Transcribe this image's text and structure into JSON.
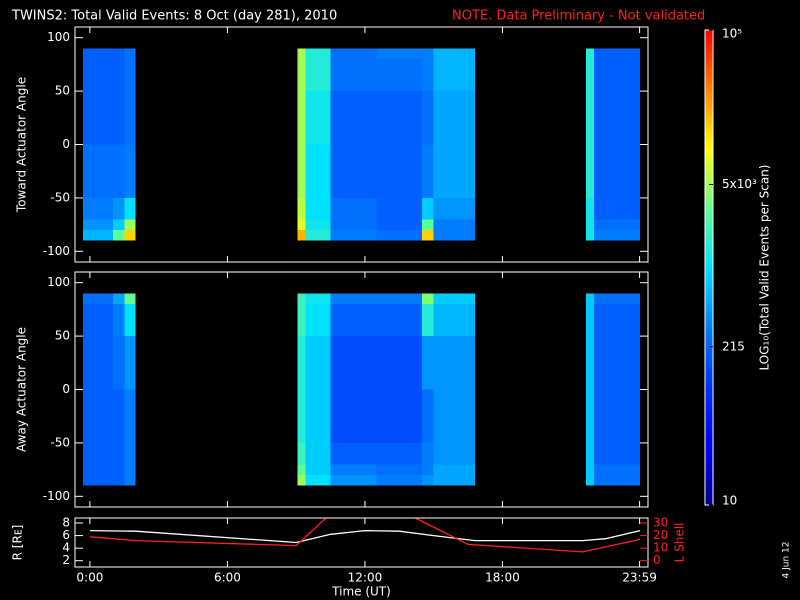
{
  "chart_data": [
    {
      "type": "heatmap",
      "title": "TWINS2: Total Valid Events:  8 Oct (day 281), 2010",
      "note": "NOTE. Data Preliminary - Not validated",
      "note_color": "#ff2020",
      "ylabel": "Toward Actuator Angle",
      "xlim": [
        -0.65,
        24.35
      ],
      "xticks": [
        0,
        6,
        12,
        18,
        23.983
      ],
      "ylim": [
        -110,
        110
      ],
      "yticks": [
        -100,
        -50,
        0,
        50,
        100
      ],
      "x_edges": [
        -0.3,
        1.0,
        1.5,
        2.0,
        9.05,
        9.4,
        10.5,
        12.5,
        14.5,
        15.0,
        16.8,
        21.65,
        22.0,
        24.0
      ],
      "y_edges": [
        -90,
        -80,
        -70,
        -50,
        0,
        50,
        80,
        90
      ],
      "z": [
        [
          600,
          400,
          300,
          250,
          200,
          200,
          200
        ],
        [
          3000,
          800,
          400,
          250,
          200,
          200,
          200
        ],
        [
          15000,
          5000,
          1000,
          300,
          250,
          250,
          250
        ],
        null,
        [
          20000,
          8000,
          6000,
          5000,
          5000,
          5000,
          5000
        ],
        [
          1500,
          1200,
          1000,
          1000,
          1200,
          1500,
          1500
        ],
        [
          300,
          250,
          250,
          200,
          200,
          250,
          250
        ],
        [
          250,
          200,
          200,
          200,
          200,
          250,
          300
        ],
        [
          15000,
          3000,
          800,
          300,
          250,
          300,
          300
        ],
        [
          300,
          300,
          400,
          500,
          500,
          600,
          600
        ],
        null,
        [
          1200,
          1200,
          1200,
          1500,
          1500,
          1500,
          1500
        ],
        [
          300,
          250,
          200,
          200,
          200,
          200,
          200
        ]
      ],
      "colorbar": {
        "label": "LOG₁₀(Total Valid Events per Scan)",
        "log": true,
        "lim": [
          10,
          100000
        ],
        "ticks": [
          10,
          215,
          {
            "value": 5000,
            "label": "5x10³"
          },
          {
            "value": 100000,
            "label": "10⁵"
          }
        ],
        "colormap": [
          "#000090",
          "#0000ff",
          "#0030ff",
          "#0080ff",
          "#00e0ff",
          "#60ff90",
          "#ffff00",
          "#ff8000",
          "#ff0000"
        ]
      }
    },
    {
      "type": "heatmap",
      "ylabel": "Away Actuator Angle",
      "xlim": [
        -0.65,
        24.35
      ],
      "xticks": [
        0,
        6,
        12,
        18,
        23.983
      ],
      "ylim": [
        -110,
        110
      ],
      "yticks": [
        -100,
        -50,
        0,
        50,
        100
      ],
      "x_edges": [
        -0.3,
        1.0,
        1.5,
        2.0,
        9.05,
        9.4,
        10.5,
        12.5,
        14.5,
        15.0,
        16.8,
        21.65,
        22.0,
        24.0
      ],
      "y_edges": [
        -90,
        -80,
        -70,
        -50,
        0,
        50,
        80,
        90
      ],
      "z": [
        [
          200,
          200,
          200,
          200,
          200,
          200,
          250
        ],
        [
          200,
          200,
          200,
          200,
          250,
          300,
          500
        ],
        [
          300,
          300,
          300,
          300,
          400,
          1000,
          3000
        ],
        null,
        [
          5000,
          3000,
          2000,
          1500,
          1500,
          2000,
          2000
        ],
        [
          1000,
          800,
          800,
          800,
          800,
          1000,
          1200
        ],
        [
          400,
          300,
          200,
          150,
          150,
          200,
          300
        ],
        [
          300,
          250,
          200,
          150,
          150,
          200,
          300
        ],
        [
          400,
          300,
          300,
          250,
          400,
          1500,
          4000
        ],
        [
          500,
          500,
          400,
          400,
          400,
          600,
          800
        ],
        null,
        [
          800,
          800,
          800,
          800,
          800,
          800,
          800
        ],
        [
          250,
          250,
          200,
          200,
          200,
          200,
          250
        ]
      ]
    },
    {
      "type": "line",
      "xlim": [
        -0.65,
        24.35
      ],
      "xticks": [
        {
          "value": 0,
          "label": "0:00"
        },
        {
          "value": 6,
          "label": "6:00"
        },
        {
          "value": 12,
          "label": "12:00"
        },
        {
          "value": 18,
          "label": "18:00"
        },
        {
          "value": 23.983,
          "label": "23:59"
        }
      ],
      "xlabel": "Time (UT)",
      "ylabel": "R [Rᴇ]",
      "ylim": [
        1,
        8.8
      ],
      "yticks": [
        2,
        4,
        6,
        8
      ],
      "y2label": "L Shell",
      "y2lim": [
        -5,
        34
      ],
      "y2ticks": [
        0,
        10,
        20,
        30
      ],
      "y2color": "#ff2020",
      "series": [
        {
          "color": "#ffffff",
          "x": [
            0,
            2,
            9,
            10.5,
            12,
            13.5,
            15,
            16.8,
            18,
            21.5,
            22.5,
            24
          ],
          "values": [
            6.8,
            6.7,
            4.9,
            6.2,
            6.8,
            6.7,
            6.0,
            5.2,
            5.2,
            5.2,
            5.5,
            6.8
          ]
        },
        {
          "color": "#ff2020",
          "axis": "y2",
          "x": [
            0,
            2,
            9,
            10.3,
            null,
            14.2,
            16.5,
            21.5,
            24
          ],
          "values": [
            19,
            16,
            12,
            34,
            null,
            34,
            13,
            7,
            17
          ]
        }
      ]
    }
  ],
  "footer": "4 Jun 12"
}
